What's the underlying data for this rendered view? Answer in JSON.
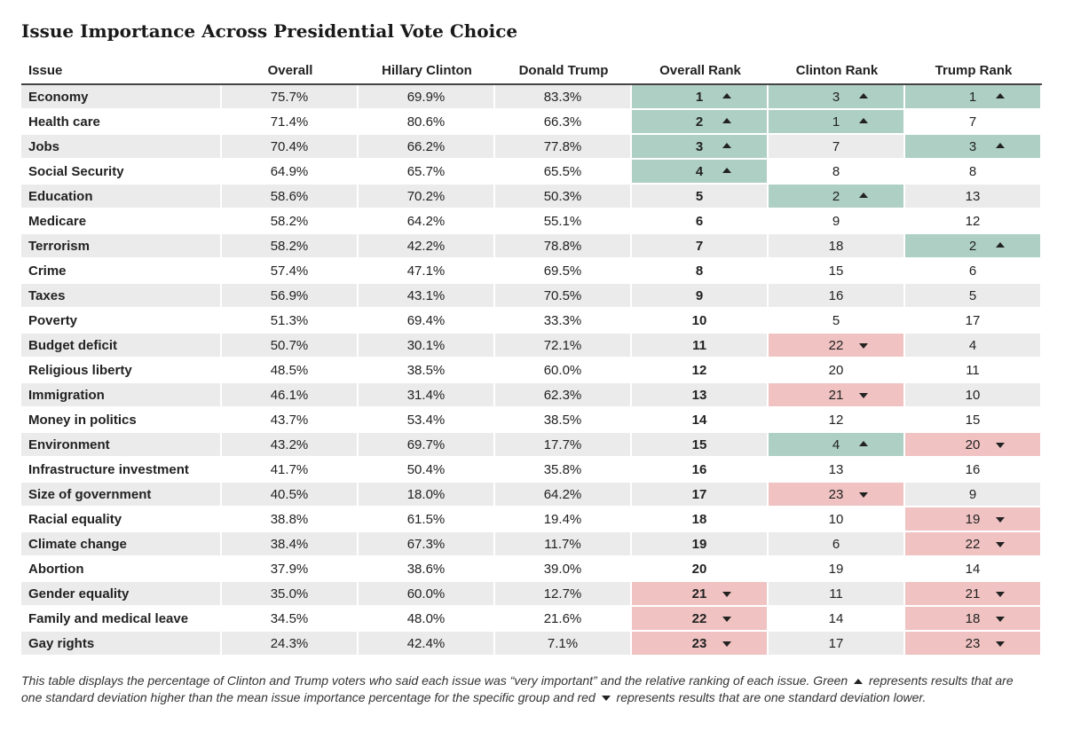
{
  "title": "Issue Importance Across Presidential Vote Choice",
  "columns": [
    "Issue",
    "Overall",
    "Hillary Clinton",
    "Donald Trump",
    "Overall Rank",
    "Clinton Rank",
    "Trump Rank"
  ],
  "colors": {
    "up": "#aecfc3",
    "down": "#f0c2c2",
    "shade": "#ebebeb"
  },
  "rows": [
    {
      "issue": "Economy",
      "overall": "75.7%",
      "clinton": "69.9%",
      "trump": "83.3%",
      "overall_rank": "1",
      "overall_mark": "up",
      "clinton_rank": "3",
      "clinton_mark": "up",
      "trump_rank": "1",
      "trump_mark": "up"
    },
    {
      "issue": "Health care",
      "overall": "71.4%",
      "clinton": "80.6%",
      "trump": "66.3%",
      "overall_rank": "2",
      "overall_mark": "up",
      "clinton_rank": "1",
      "clinton_mark": "up",
      "trump_rank": "7",
      "trump_mark": ""
    },
    {
      "issue": "Jobs",
      "overall": "70.4%",
      "clinton": "66.2%",
      "trump": "77.8%",
      "overall_rank": "3",
      "overall_mark": "up",
      "clinton_rank": "7",
      "clinton_mark": "",
      "trump_rank": "3",
      "trump_mark": "up"
    },
    {
      "issue": "Social Security",
      "overall": "64.9%",
      "clinton": "65.7%",
      "trump": "65.5%",
      "overall_rank": "4",
      "overall_mark": "up",
      "clinton_rank": "8",
      "clinton_mark": "",
      "trump_rank": "8",
      "trump_mark": ""
    },
    {
      "issue": "Education",
      "overall": "58.6%",
      "clinton": "70.2%",
      "trump": "50.3%",
      "overall_rank": "5",
      "overall_mark": "",
      "clinton_rank": "2",
      "clinton_mark": "up",
      "trump_rank": "13",
      "trump_mark": ""
    },
    {
      "issue": "Medicare",
      "overall": "58.2%",
      "clinton": "64.2%",
      "trump": "55.1%",
      "overall_rank": "6",
      "overall_mark": "",
      "clinton_rank": "9",
      "clinton_mark": "",
      "trump_rank": "12",
      "trump_mark": ""
    },
    {
      "issue": "Terrorism",
      "overall": "58.2%",
      "clinton": "42.2%",
      "trump": "78.8%",
      "overall_rank": "7",
      "overall_mark": "",
      "clinton_rank": "18",
      "clinton_mark": "",
      "trump_rank": "2",
      "trump_mark": "up"
    },
    {
      "issue": "Crime",
      "overall": "57.4%",
      "clinton": "47.1%",
      "trump": "69.5%",
      "overall_rank": "8",
      "overall_mark": "",
      "clinton_rank": "15",
      "clinton_mark": "",
      "trump_rank": "6",
      "trump_mark": ""
    },
    {
      "issue": "Taxes",
      "overall": "56.9%",
      "clinton": "43.1%",
      "trump": "70.5%",
      "overall_rank": "9",
      "overall_mark": "",
      "clinton_rank": "16",
      "clinton_mark": "",
      "trump_rank": "5",
      "trump_mark": ""
    },
    {
      "issue": "Poverty",
      "overall": "51.3%",
      "clinton": "69.4%",
      "trump": "33.3%",
      "overall_rank": "10",
      "overall_mark": "",
      "clinton_rank": "5",
      "clinton_mark": "",
      "trump_rank": "17",
      "trump_mark": ""
    },
    {
      "issue": "Budget deficit",
      "overall": "50.7%",
      "clinton": "30.1%",
      "trump": "72.1%",
      "overall_rank": "11",
      "overall_mark": "",
      "clinton_rank": "22",
      "clinton_mark": "down",
      "trump_rank": "4",
      "trump_mark": ""
    },
    {
      "issue": "Religious liberty",
      "overall": "48.5%",
      "clinton": "38.5%",
      "trump": "60.0%",
      "overall_rank": "12",
      "overall_mark": "",
      "clinton_rank": "20",
      "clinton_mark": "",
      "trump_rank": "11",
      "trump_mark": ""
    },
    {
      "issue": "Immigration",
      "overall": "46.1%",
      "clinton": "31.4%",
      "trump": "62.3%",
      "overall_rank": "13",
      "overall_mark": "",
      "clinton_rank": "21",
      "clinton_mark": "down",
      "trump_rank": "10",
      "trump_mark": ""
    },
    {
      "issue": "Money in politics",
      "overall": "43.7%",
      "clinton": "53.4%",
      "trump": "38.5%",
      "overall_rank": "14",
      "overall_mark": "",
      "clinton_rank": "12",
      "clinton_mark": "",
      "trump_rank": "15",
      "trump_mark": ""
    },
    {
      "issue": "Environment",
      "overall": "43.2%",
      "clinton": "69.7%",
      "trump": "17.7%",
      "overall_rank": "15",
      "overall_mark": "",
      "clinton_rank": "4",
      "clinton_mark": "up",
      "trump_rank": "20",
      "trump_mark": "down"
    },
    {
      "issue": "Infrastructure investment",
      "overall": "41.7%",
      "clinton": "50.4%",
      "trump": "35.8%",
      "overall_rank": "16",
      "overall_mark": "",
      "clinton_rank": "13",
      "clinton_mark": "",
      "trump_rank": "16",
      "trump_mark": ""
    },
    {
      "issue": "Size of government",
      "overall": "40.5%",
      "clinton": "18.0%",
      "trump": "64.2%",
      "overall_rank": "17",
      "overall_mark": "",
      "clinton_rank": "23",
      "clinton_mark": "down",
      "trump_rank": "9",
      "trump_mark": ""
    },
    {
      "issue": "Racial equality",
      "overall": "38.8%",
      "clinton": "61.5%",
      "trump": "19.4%",
      "overall_rank": "18",
      "overall_mark": "",
      "clinton_rank": "10",
      "clinton_mark": "",
      "trump_rank": "19",
      "trump_mark": "down"
    },
    {
      "issue": "Climate change",
      "overall": "38.4%",
      "clinton": "67.3%",
      "trump": "11.7%",
      "overall_rank": "19",
      "overall_mark": "",
      "clinton_rank": "6",
      "clinton_mark": "",
      "trump_rank": "22",
      "trump_mark": "down"
    },
    {
      "issue": "Abortion",
      "overall": "37.9%",
      "clinton": "38.6%",
      "trump": "39.0%",
      "overall_rank": "20",
      "overall_mark": "",
      "clinton_rank": "19",
      "clinton_mark": "",
      "trump_rank": "14",
      "trump_mark": ""
    },
    {
      "issue": "Gender equality",
      "overall": "35.0%",
      "clinton": "60.0%",
      "trump": "12.7%",
      "overall_rank": "21",
      "overall_mark": "down",
      "clinton_rank": "11",
      "clinton_mark": "",
      "trump_rank": "21",
      "trump_mark": "down"
    },
    {
      "issue": "Family and medical leave",
      "overall": "34.5%",
      "clinton": "48.0%",
      "trump": "21.6%",
      "overall_rank": "22",
      "overall_mark": "down",
      "clinton_rank": "14",
      "clinton_mark": "",
      "trump_rank": "18",
      "trump_mark": "down"
    },
    {
      "issue": "Gay rights",
      "overall": "24.3%",
      "clinton": "42.4%",
      "trump": "7.1%",
      "overall_rank": "23",
      "overall_mark": "down",
      "clinton_rank": "17",
      "clinton_mark": "",
      "trump_rank": "23",
      "trump_mark": "down"
    }
  ],
  "caption": {
    "part1": "This table displays the percentage of Clinton and Trump voters who said each issue was “very important” and the relative ranking of each issue. Green",
    "part2": "represents results that are one standard deviation higher than the mean issue importance percentage for the specific group and red",
    "part3": "represents results that are one standard deviation lower."
  }
}
